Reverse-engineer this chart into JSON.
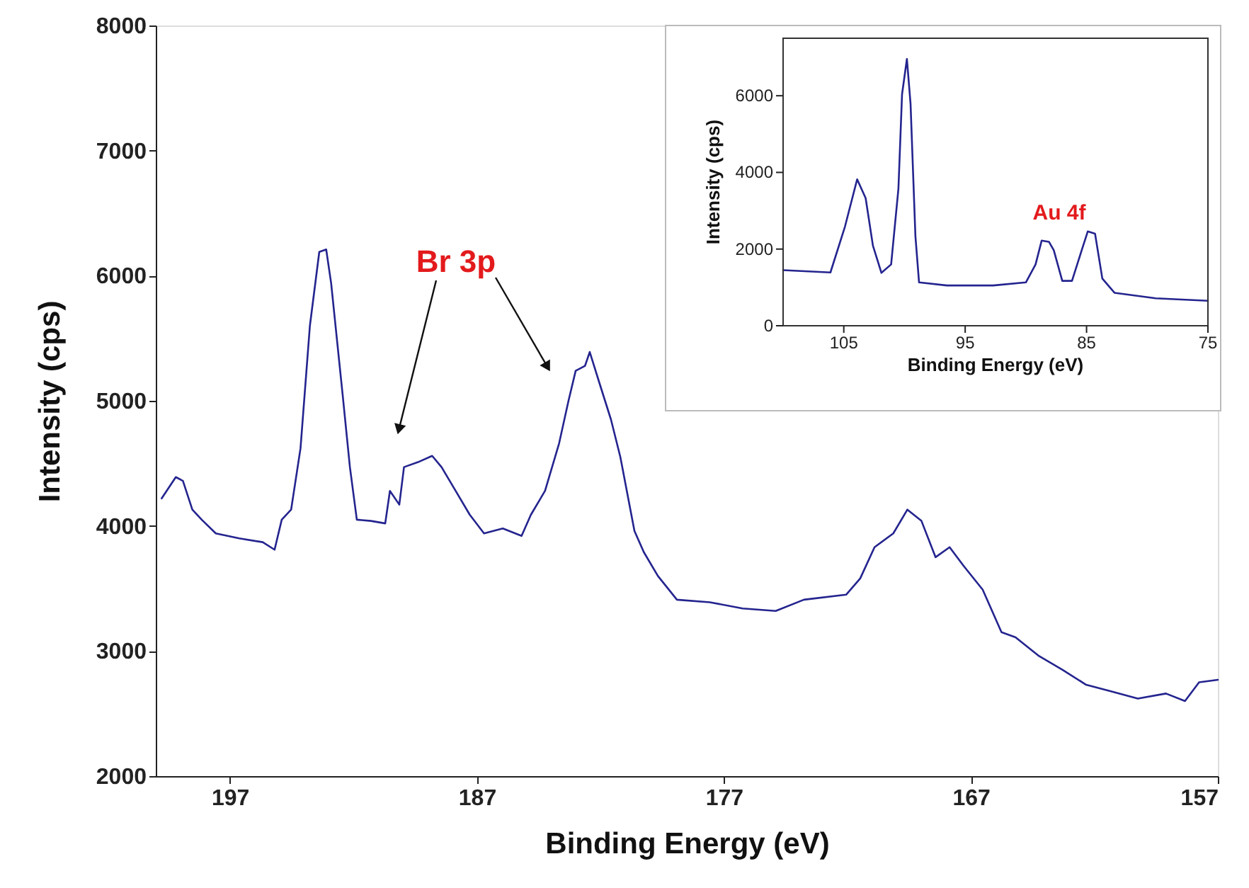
{
  "chart_data": [
    {
      "type": "line",
      "xlabel": "Binding Energy (eV)",
      "ylabel": "Intensity (cps)",
      "xlim": [
        200,
        157
      ],
      "xticks": [
        197,
        187,
        177,
        167,
        157
      ],
      "ylim": [
        2000,
        8000
      ],
      "yticks": [
        2000,
        3000,
        4000,
        5000,
        6000,
        7000,
        8000
      ],
      "grid": false,
      "marker": "none",
      "line_style": "solid",
      "annotations": [
        "Br 3p"
      ],
      "series": [
        {
          "color": "#24248f",
          "x": [
            199.76,
            199.19,
            198.9,
            198.52,
            198.14,
            197.57,
            196.62,
            195.67,
            195.19,
            194.9,
            194.52,
            194.14,
            193.76,
            193.38,
            193.1,
            192.9,
            192.43,
            192.14,
            191.86,
            191.29,
            190.71,
            190.52,
            190.14,
            189.95,
            189.38,
            188.81,
            188.43,
            187.86,
            187.29,
            186.71,
            185.95,
            185.19,
            184.81,
            184.24,
            183.67,
            183.29,
            183.0,
            182.62,
            182.43,
            182.05,
            181.57,
            181.19,
            180.62,
            180.24,
            179.67,
            178.9,
            177.57,
            176.24,
            174.9,
            173.76,
            172.05,
            171.48,
            170.9,
            170.14,
            169.57,
            169.0,
            168.43,
            167.86,
            167.29,
            166.52,
            165.76,
            165.19,
            164.24,
            163.29,
            162.33,
            161.38,
            160.24,
            159.1,
            158.33,
            157.76,
            157.0
          ],
          "values": [
            4220,
            4390,
            4360,
            4130,
            4050,
            3940,
            3900,
            3870,
            3810,
            4050,
            4130,
            4620,
            5600,
            6190,
            6210,
            5940,
            5040,
            4470,
            4050,
            4040,
            4020,
            4280,
            4170,
            4470,
            4510,
            4560,
            4470,
            4280,
            4090,
            3940,
            3980,
            3920,
            4090,
            4280,
            4660,
            5000,
            5240,
            5280,
            5390,
            5150,
            4850,
            4550,
            3960,
            3790,
            3600,
            3410,
            3390,
            3340,
            3320,
            3410,
            3450,
            3580,
            3830,
            3940,
            4130,
            4040,
            3750,
            3830,
            3680,
            3490,
            3150,
            3110,
            2960,
            2850,
            2730,
            2680,
            2620,
            2660,
            2600,
            2750,
            2770
          ]
        }
      ]
    },
    {
      "type": "line",
      "xlabel": "Binding Energy (eV)",
      "ylabel": "Intensity (cps)",
      "xlim": [
        110,
        75
      ],
      "xticks": [
        105,
        95,
        85,
        75
      ],
      "ylim": [
        0,
        7500
      ],
      "yticks": [
        0,
        2000,
        4000,
        6000
      ],
      "grid": false,
      "marker": "none",
      "line_style": "solid",
      "annotations": [
        "Au 4f"
      ],
      "series": [
        {
          "color": "#24248f",
          "x": [
            110,
            106.1,
            104.9,
            103.9,
            103.2,
            102.6,
            101.9,
            101.1,
            100.5,
            100.2,
            99.8,
            99.5,
            99.1,
            98.8,
            96.5,
            92.7,
            90.0,
            89.2,
            88.7,
            88.1,
            87.7,
            87.0,
            86.2,
            85.4,
            84.9,
            84.3,
            83.7,
            82.7,
            79.3,
            75
          ],
          "values": [
            1450,
            1390,
            2590,
            3820,
            3330,
            2090,
            1380,
            1600,
            3570,
            6040,
            6960,
            5790,
            2340,
            1130,
            1050,
            1050,
            1130,
            1600,
            2220,
            2190,
            1970,
            1170,
            1170,
            1970,
            2460,
            2400,
            1230,
            860,
            715,
            650
          ]
        }
      ]
    }
  ]
}
